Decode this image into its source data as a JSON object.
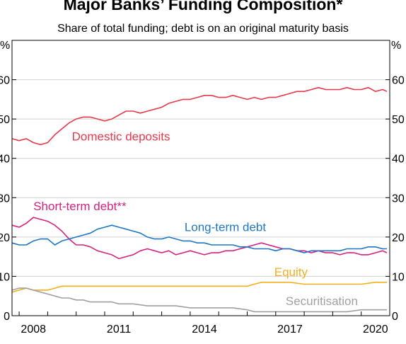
{
  "chart_data": {
    "type": "line",
    "title": "Major Banks’ Funding Composition*",
    "subtitle": "Share of total funding; debt is on an original maturity basis",
    "ylabel_left": "%",
    "ylabel_right": "%",
    "ylim": [
      0,
      70
    ],
    "yticks": [
      0,
      10,
      20,
      30,
      40,
      50,
      60
    ],
    "xlim": [
      2006.75,
      2020.0
    ],
    "xticks": [
      2008,
      2011,
      2014,
      2017,
      2020
    ],
    "grid": true,
    "series": [
      {
        "name": "Domestic deposits",
        "color": "#e8394a",
        "points": [
          [
            2006.75,
            45
          ],
          [
            2007.0,
            44.5
          ],
          [
            2007.25,
            45
          ],
          [
            2007.5,
            44
          ],
          [
            2007.75,
            43.5
          ],
          [
            2008.0,
            44
          ],
          [
            2008.25,
            46
          ],
          [
            2008.5,
            47.5
          ],
          [
            2008.75,
            49
          ],
          [
            2009.0,
            50
          ],
          [
            2009.25,
            50.5
          ],
          [
            2009.5,
            50.5
          ],
          [
            2009.75,
            50
          ],
          [
            2010.0,
            49.5
          ],
          [
            2010.25,
            50
          ],
          [
            2010.5,
            51
          ],
          [
            2010.75,
            52
          ],
          [
            2011.0,
            52
          ],
          [
            2011.25,
            51.5
          ],
          [
            2011.5,
            52
          ],
          [
            2011.75,
            52.5
          ],
          [
            2012.0,
            53
          ],
          [
            2012.25,
            54
          ],
          [
            2012.5,
            54.5
          ],
          [
            2012.75,
            55
          ],
          [
            2013.0,
            55
          ],
          [
            2013.25,
            55.5
          ],
          [
            2013.5,
            56
          ],
          [
            2013.75,
            56
          ],
          [
            2014.0,
            55.5
          ],
          [
            2014.25,
            55.5
          ],
          [
            2014.5,
            56
          ],
          [
            2014.75,
            55.5
          ],
          [
            2015.0,
            55
          ],
          [
            2015.25,
            55.5
          ],
          [
            2015.5,
            55
          ],
          [
            2015.75,
            55.5
          ],
          [
            2016.0,
            55.5
          ],
          [
            2016.25,
            56
          ],
          [
            2016.5,
            56.5
          ],
          [
            2016.75,
            57
          ],
          [
            2017.0,
            57
          ],
          [
            2017.25,
            57.5
          ],
          [
            2017.5,
            58
          ],
          [
            2017.75,
            57.5
          ],
          [
            2018.0,
            57.5
          ],
          [
            2018.25,
            57.5
          ],
          [
            2018.5,
            58
          ],
          [
            2018.75,
            57.5
          ],
          [
            2019.0,
            57.5
          ],
          [
            2019.25,
            58
          ],
          [
            2019.5,
            57
          ],
          [
            2019.75,
            57.5
          ],
          [
            2019.9,
            57
          ]
        ]
      },
      {
        "name": "Short-term debt**",
        "color": "#d4237f",
        "points": [
          [
            2006.75,
            23
          ],
          [
            2007.0,
            22.5
          ],
          [
            2007.25,
            23.5
          ],
          [
            2007.5,
            25
          ],
          [
            2007.75,
            24.5
          ],
          [
            2008.0,
            24
          ],
          [
            2008.25,
            23
          ],
          [
            2008.5,
            21.5
          ],
          [
            2008.75,
            19.5
          ],
          [
            2009.0,
            18
          ],
          [
            2009.25,
            18
          ],
          [
            2009.5,
            17.5
          ],
          [
            2009.75,
            16.5
          ],
          [
            2010.0,
            16
          ],
          [
            2010.25,
            15.5
          ],
          [
            2010.5,
            14.5
          ],
          [
            2010.75,
            15
          ],
          [
            2011.0,
            15.5
          ],
          [
            2011.25,
            16.5
          ],
          [
            2011.5,
            17
          ],
          [
            2011.75,
            16.5
          ],
          [
            2012.0,
            16
          ],
          [
            2012.25,
            16.5
          ],
          [
            2012.5,
            15.5
          ],
          [
            2012.75,
            16
          ],
          [
            2013.0,
            16.5
          ],
          [
            2013.25,
            16
          ],
          [
            2013.5,
            15.5
          ],
          [
            2013.75,
            16
          ],
          [
            2014.0,
            16
          ],
          [
            2014.25,
            16.5
          ],
          [
            2014.5,
            16.5
          ],
          [
            2014.75,
            17
          ],
          [
            2015.0,
            17.5
          ],
          [
            2015.25,
            18
          ],
          [
            2015.5,
            18.5
          ],
          [
            2015.75,
            18
          ],
          [
            2016.0,
            17.5
          ],
          [
            2016.25,
            17
          ],
          [
            2016.5,
            17
          ],
          [
            2016.75,
            16.5
          ],
          [
            2017.0,
            16.5
          ],
          [
            2017.25,
            16
          ],
          [
            2017.5,
            16.5
          ],
          [
            2017.75,
            16
          ],
          [
            2018.0,
            16
          ],
          [
            2018.25,
            15.5
          ],
          [
            2018.5,
            16
          ],
          [
            2018.75,
            16
          ],
          [
            2019.0,
            15.5
          ],
          [
            2019.25,
            15.5
          ],
          [
            2019.5,
            16
          ],
          [
            2019.75,
            16.5
          ],
          [
            2019.9,
            16
          ]
        ]
      },
      {
        "name": "Long-term debt",
        "color": "#1f77c4",
        "points": [
          [
            2006.75,
            18.5
          ],
          [
            2007.0,
            18
          ],
          [
            2007.25,
            18
          ],
          [
            2007.5,
            19
          ],
          [
            2007.75,
            19.5
          ],
          [
            2008.0,
            19.5
          ],
          [
            2008.25,
            18
          ],
          [
            2008.5,
            19
          ],
          [
            2008.75,
            19.5
          ],
          [
            2009.0,
            20
          ],
          [
            2009.25,
            20.5
          ],
          [
            2009.5,
            21
          ],
          [
            2009.75,
            22
          ],
          [
            2010.0,
            22.5
          ],
          [
            2010.25,
            23
          ],
          [
            2010.5,
            22.5
          ],
          [
            2010.75,
            22
          ],
          [
            2011.0,
            21.5
          ],
          [
            2011.25,
            21
          ],
          [
            2011.5,
            20
          ],
          [
            2011.75,
            19.5
          ],
          [
            2012.0,
            19.5
          ],
          [
            2012.25,
            20
          ],
          [
            2012.5,
            19.5
          ],
          [
            2012.75,
            19
          ],
          [
            2013.0,
            19
          ],
          [
            2013.25,
            18.5
          ],
          [
            2013.5,
            18.5
          ],
          [
            2013.75,
            18
          ],
          [
            2014.0,
            18
          ],
          [
            2014.25,
            18
          ],
          [
            2014.5,
            18
          ],
          [
            2014.75,
            17.5
          ],
          [
            2015.0,
            17.5
          ],
          [
            2015.25,
            17
          ],
          [
            2015.5,
            17
          ],
          [
            2015.75,
            17
          ],
          [
            2016.0,
            16.5
          ],
          [
            2016.25,
            17
          ],
          [
            2016.5,
            17
          ],
          [
            2016.75,
            16.5
          ],
          [
            2017.0,
            16
          ],
          [
            2017.25,
            16.5
          ],
          [
            2017.5,
            16.5
          ],
          [
            2017.75,
            16.5
          ],
          [
            2018.0,
            16.5
          ],
          [
            2018.25,
            16.5
          ],
          [
            2018.5,
            17
          ],
          [
            2018.75,
            17
          ],
          [
            2019.0,
            17
          ],
          [
            2019.25,
            17.5
          ],
          [
            2019.5,
            17.5
          ],
          [
            2019.75,
            17
          ],
          [
            2019.9,
            17
          ]
        ]
      },
      {
        "name": "Equity",
        "color": "#f2b01e",
        "points": [
          [
            2006.75,
            6
          ],
          [
            2007.0,
            6.5
          ],
          [
            2007.25,
            7
          ],
          [
            2007.5,
            6.5
          ],
          [
            2007.75,
            6.5
          ],
          [
            2008.0,
            6.5
          ],
          [
            2008.25,
            7
          ],
          [
            2008.5,
            7.5
          ],
          [
            2008.75,
            7.5
          ],
          [
            2009.0,
            7.5
          ],
          [
            2009.5,
            7.5
          ],
          [
            2010.0,
            7.5
          ],
          [
            2010.5,
            7.5
          ],
          [
            2011.0,
            7.5
          ],
          [
            2011.5,
            7.5
          ],
          [
            2012.0,
            7.5
          ],
          [
            2012.5,
            7.5
          ],
          [
            2013.0,
            7.5
          ],
          [
            2013.5,
            7.5
          ],
          [
            2014.0,
            7.5
          ],
          [
            2014.5,
            7.5
          ],
          [
            2015.0,
            7.5
          ],
          [
            2015.25,
            8
          ],
          [
            2015.5,
            8.5
          ],
          [
            2016.0,
            8.5
          ],
          [
            2016.5,
            8.5
          ],
          [
            2017.0,
            8
          ],
          [
            2017.5,
            8
          ],
          [
            2018.0,
            8
          ],
          [
            2018.5,
            8
          ],
          [
            2019.0,
            8
          ],
          [
            2019.5,
            8.5
          ],
          [
            2019.9,
            8.5
          ]
        ]
      },
      {
        "name": "Securitisation",
        "color": "#a0a0a0",
        "points": [
          [
            2006.75,
            6.5
          ],
          [
            2007.0,
            7
          ],
          [
            2007.25,
            7
          ],
          [
            2007.5,
            6.5
          ],
          [
            2007.75,
            6
          ],
          [
            2008.0,
            5.5
          ],
          [
            2008.25,
            5
          ],
          [
            2008.5,
            4.5
          ],
          [
            2008.75,
            4.5
          ],
          [
            2009.0,
            4
          ],
          [
            2009.25,
            4
          ],
          [
            2009.5,
            3.5
          ],
          [
            2009.75,
            3.5
          ],
          [
            2010.0,
            3.5
          ],
          [
            2010.25,
            3.5
          ],
          [
            2010.5,
            3
          ],
          [
            2010.75,
            3
          ],
          [
            2011.0,
            3
          ],
          [
            2011.5,
            2.5
          ],
          [
            2012.0,
            2.5
          ],
          [
            2012.5,
            2.5
          ],
          [
            2013.0,
            2
          ],
          [
            2013.5,
            2
          ],
          [
            2014.0,
            2
          ],
          [
            2014.5,
            2
          ],
          [
            2015.0,
            1.5
          ],
          [
            2015.25,
            1
          ],
          [
            2015.5,
            1
          ],
          [
            2016.0,
            1
          ],
          [
            2016.5,
            1
          ],
          [
            2017.0,
            1
          ],
          [
            2017.5,
            1
          ],
          [
            2018.0,
            1
          ],
          [
            2018.5,
            1
          ],
          [
            2019.0,
            1.5
          ],
          [
            2019.5,
            1.5
          ],
          [
            2019.9,
            1.5
          ]
        ]
      }
    ]
  }
}
